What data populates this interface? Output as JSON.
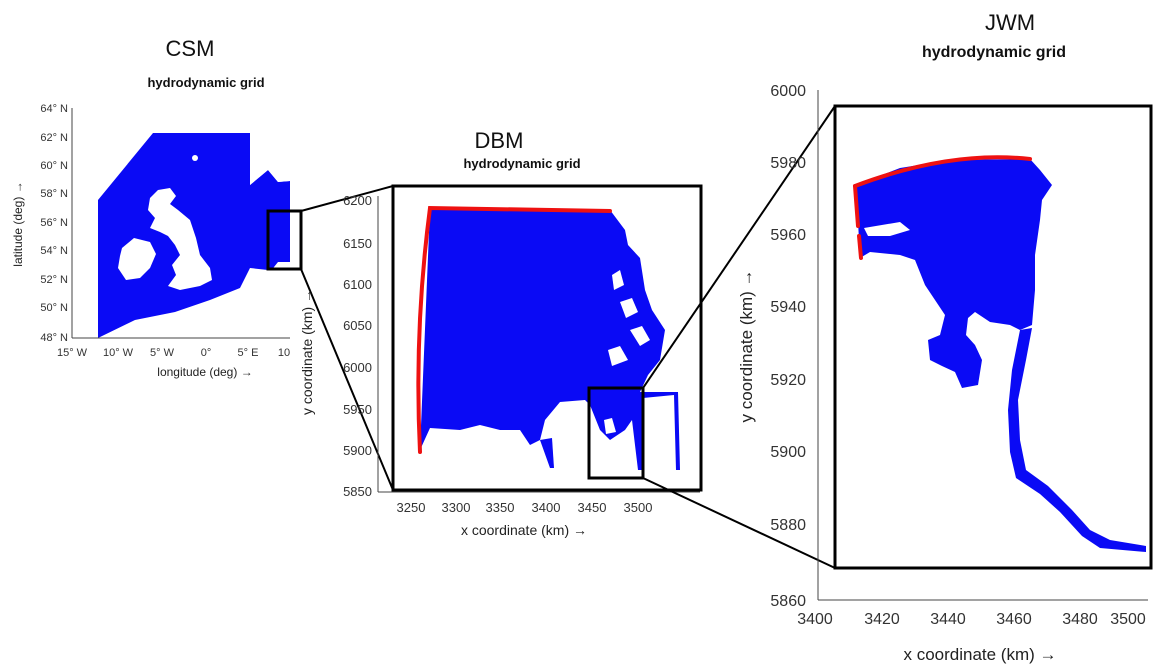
{
  "panels": {
    "csm": {
      "title": "CSM",
      "subtitle": "hydrodynamic grid",
      "xlabel": "longitude (deg) →",
      "ylabel": "latitude (deg) →",
      "xticks": [
        "15° W",
        "10° W",
        "5° W",
        "0°",
        "5° E",
        "10"
      ],
      "yticks": [
        "64° N",
        "62° N",
        "60° N",
        "58° N",
        "56° N",
        "54° N",
        "52° N",
        "50° N",
        "48° N"
      ]
    },
    "dbm": {
      "title": "DBM",
      "subtitle": "hydrodynamic grid",
      "xlabel": "x coordinate (km) →",
      "ylabel": "y coordinate (km) →",
      "xticks": [
        "3250",
        "3300",
        "3350",
        "3400",
        "3450",
        "3500"
      ],
      "yticks": [
        "6200",
        "6150",
        "6100",
        "6050",
        "6000",
        "5950",
        "5900",
        "5850"
      ]
    },
    "jwm": {
      "title": "JWM",
      "subtitle": "hydrodynamic grid",
      "xlabel": "x coordinate (km) →",
      "ylabel": "y coordinate (km) →",
      "xticks": [
        "3400",
        "3420",
        "3440",
        "3460",
        "3480",
        "3500"
      ],
      "yticks": [
        "6000",
        "5980",
        "5960",
        "5940",
        "5920",
        "5900",
        "5880",
        "5860"
      ]
    }
  },
  "colors": {
    "grid_water": "#0a0af5",
    "open_boundary": "#ee1111",
    "zoom_box": "#000000"
  }
}
